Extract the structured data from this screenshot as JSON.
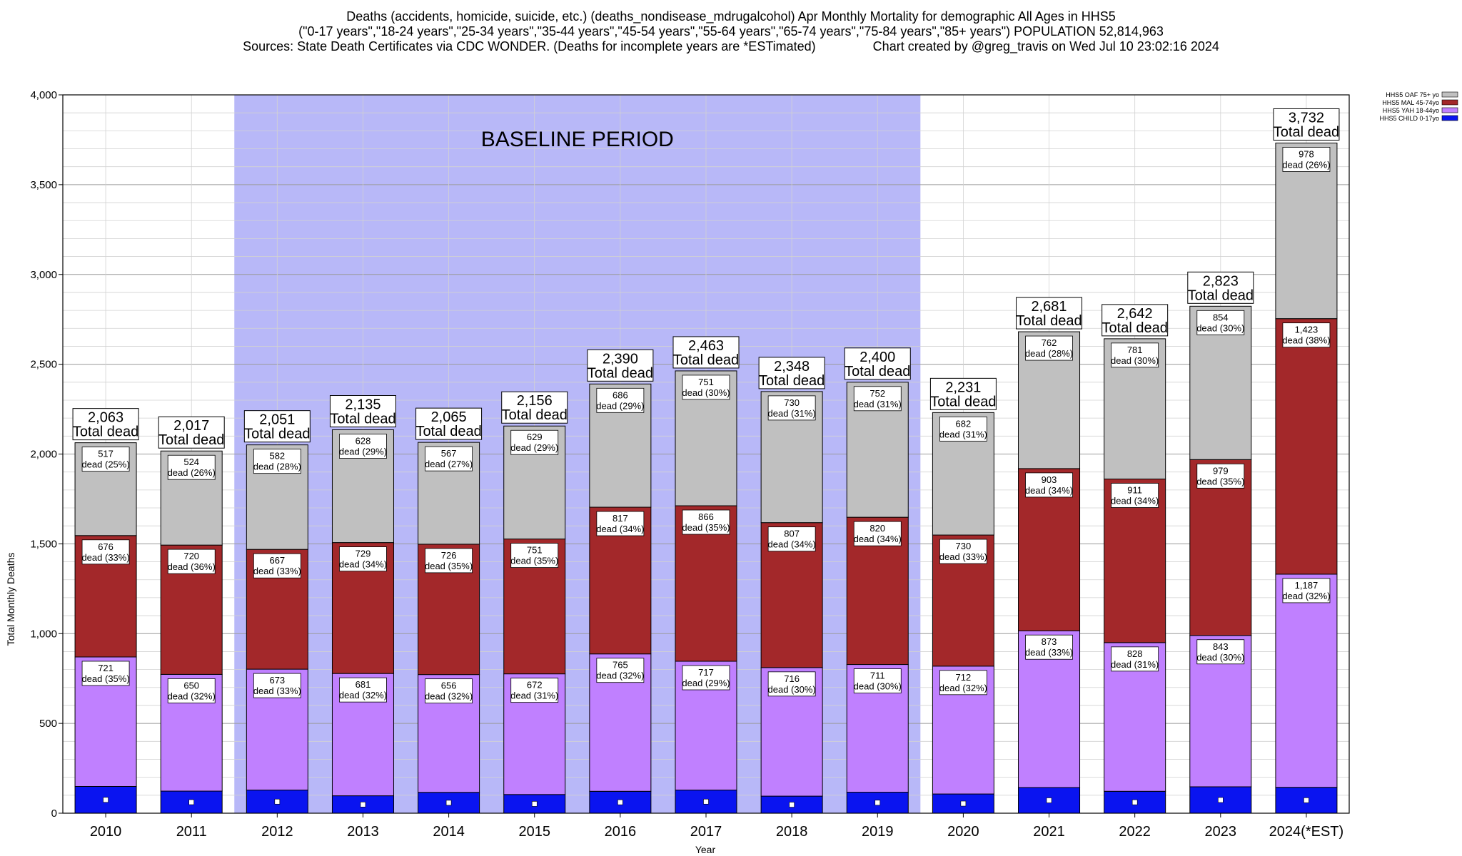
{
  "chart_data": {
    "type": "bar",
    "stacked": true,
    "title_lines": [
      "Deaths (accidents, homicide, suicide, etc.) (deaths_nondisease_mdrugalcohol) Apr Monthly Mortality for demographic All Ages in HHS5",
      "(\"0-17 years\",\"18-24 years\",\"25-34 years\",\"35-44 years\",\"45-54 years\",\"55-64 years\",\"65-74 years\",\"75-84 years\",\"85+ years\") POPULATION 52,814,963",
      "Sources: State Death Certificates via CDC WONDER. (Deaths for incomplete years are *ESTimated)                Chart created by @greg_travis on Wed Jul 10 23:02:16 2024"
    ],
    "xlabel": "Year",
    "ylabel": "Total Monthly Deaths",
    "ylim": [
      0,
      4000
    ],
    "yticks": [
      0,
      500,
      1000,
      1500,
      2000,
      2500,
      3000,
      3500,
      4000
    ],
    "ytick_labels": [
      "0",
      "500",
      "1,000",
      "1,500",
      "2,000",
      "2,500",
      "3,000",
      "3,500",
      "4,000"
    ],
    "grid": true,
    "legend_position": "top-right",
    "baseline": {
      "label": "BASELINE PERIOD",
      "start": "2012",
      "end": "2019",
      "color": "#b8b8f8"
    },
    "categories": [
      "2010",
      "2011",
      "2012",
      "2013",
      "2014",
      "2015",
      "2016",
      "2017",
      "2018",
      "2019",
      "2020",
      "2021",
      "2022",
      "2023",
      "2024(*EST)"
    ],
    "totals": [
      2063,
      2017,
      2051,
      2135,
      2065,
      2156,
      2390,
      2463,
      2348,
      2400,
      2231,
      2681,
      2642,
      2823,
      3732
    ],
    "totals_labels": [
      "2,063",
      "2,017",
      "2,051",
      "2,135",
      "2,065",
      "2,156",
      "2,390",
      "2,463",
      "2,348",
      "2,400",
      "2,231",
      "2,681",
      "2,642",
      "2,823",
      "3,732"
    ],
    "total_suffix": "Total dead",
    "series": [
      {
        "name": "HHS5 CHILD 0-17yo",
        "color": "#0a14f0",
        "values": [
          149,
          123,
          129,
          97,
          116,
          104,
          122,
          129,
          95,
          117,
          107,
          143,
          122,
          147,
          144
        ]
      },
      {
        "name": "HHS5 YAH 18-44yo",
        "color": "#c080ff",
        "values": [
          721,
          650,
          673,
          681,
          656,
          672,
          765,
          717,
          716,
          711,
          712,
          873,
          828,
          843,
          1187
        ],
        "labels": [
          "721",
          "650",
          "673",
          "681",
          "656",
          "672",
          "765",
          "717",
          "716",
          "711",
          "712",
          "873",
          "828",
          "843",
          "1,187"
        ],
        "pct_labels": [
          "dead (35%)",
          "dead (32%)",
          "dead (33%)",
          "dead (32%)",
          "dead (32%)",
          "dead (31%)",
          "dead (32%)",
          "dead (29%)",
          "dead (30%)",
          "dead (30%)",
          "dead (32%)",
          "dead (33%)",
          "dead (31%)",
          "dead (30%)",
          "dead (32%)"
        ]
      },
      {
        "name": "HHS5 MAL 45-74yo",
        "color": "#a3282a",
        "values": [
          676,
          720,
          667,
          729,
          726,
          751,
          817,
          866,
          807,
          820,
          730,
          903,
          911,
          979,
          1423
        ],
        "labels": [
          "676",
          "720",
          "667",
          "729",
          "726",
          "751",
          "817",
          "866",
          "807",
          "820",
          "730",
          "903",
          "911",
          "979",
          "1,423"
        ],
        "pct_labels": [
          "dead (33%)",
          "dead (36%)",
          "dead (33%)",
          "dead (34%)",
          "dead (35%)",
          "dead (35%)",
          "dead (34%)",
          "dead (35%)",
          "dead (34%)",
          "dead (34%)",
          "dead (33%)",
          "dead (34%)",
          "dead (34%)",
          "dead (35%)",
          "dead (38%)"
        ]
      },
      {
        "name": "HHS5 OAF 75+ yo",
        "color": "#c0c0c0",
        "values": [
          517,
          524,
          582,
          628,
          567,
          629,
          686,
          751,
          730,
          752,
          682,
          762,
          781,
          854,
          978
        ],
        "labels": [
          "517",
          "524",
          "582",
          "628",
          "567",
          "629",
          "686",
          "751",
          "730",
          "752",
          "682",
          "762",
          "781",
          "854",
          "978"
        ],
        "pct_labels": [
          "dead (25%)",
          "dead (26%)",
          "dead (28%)",
          "dead (29%)",
          "dead (27%)",
          "dead (29%)",
          "dead (29%)",
          "dead (30%)",
          "dead (31%)",
          "dead (31%)",
          "dead (31%)",
          "dead (28%)",
          "dead (30%)",
          "dead (30%)",
          "dead (26%)"
        ]
      }
    ],
    "legend_order": [
      "HHS5 OAF 75+ yo",
      "HHS5 MAL 45-74yo",
      "HHS5 YAH 18-44yo",
      "HHS5 CHILD 0-17yo"
    ]
  }
}
